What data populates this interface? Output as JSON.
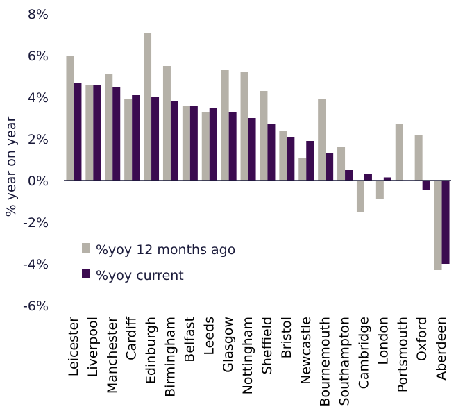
{
  "chart_data": {
    "type": "bar",
    "title": "",
    "xlabel": "",
    "ylabel": "% year on year",
    "ylim": [
      -6,
      8
    ],
    "yticks": [
      8,
      6,
      4,
      2,
      0,
      -2,
      -4,
      -6
    ],
    "ytick_labels": [
      "8%",
      "6%",
      "4%",
      "2%",
      "0%",
      "-2%",
      "-4%",
      "-6%"
    ],
    "categories": [
      "Leicester",
      "Liverpool",
      "Manchester",
      "Cardiff",
      "Edinburgh",
      "Birmingham",
      "Belfast",
      "Leeds",
      "Glasgow",
      "Nottingham",
      "Sheffield",
      "Bristol",
      "Newcastle",
      "Bournemouth",
      "Southampton",
      "Cambridge",
      "London",
      "Portsmouth",
      "Oxford",
      "Aberdeen"
    ],
    "series": [
      {
        "name": "%yoy 12 months ago",
        "color": "#b5b1a8",
        "values": [
          6.0,
          4.6,
          5.1,
          3.9,
          7.1,
          5.5,
          3.6,
          3.3,
          5.3,
          5.2,
          4.3,
          2.4,
          1.1,
          3.9,
          1.6,
          -1.5,
          -0.9,
          2.7,
          2.2,
          -4.3
        ]
      },
      {
        "name": "%yoy current",
        "color": "#3b0b50",
        "values": [
          4.7,
          4.6,
          4.5,
          4.1,
          4.0,
          3.8,
          3.6,
          3.5,
          3.3,
          3.0,
          2.7,
          2.1,
          1.9,
          1.3,
          0.5,
          0.3,
          0.15,
          0.0,
          -0.45,
          -4.0
        ]
      }
    ],
    "legend_position": "lower-left",
    "grid": false
  }
}
